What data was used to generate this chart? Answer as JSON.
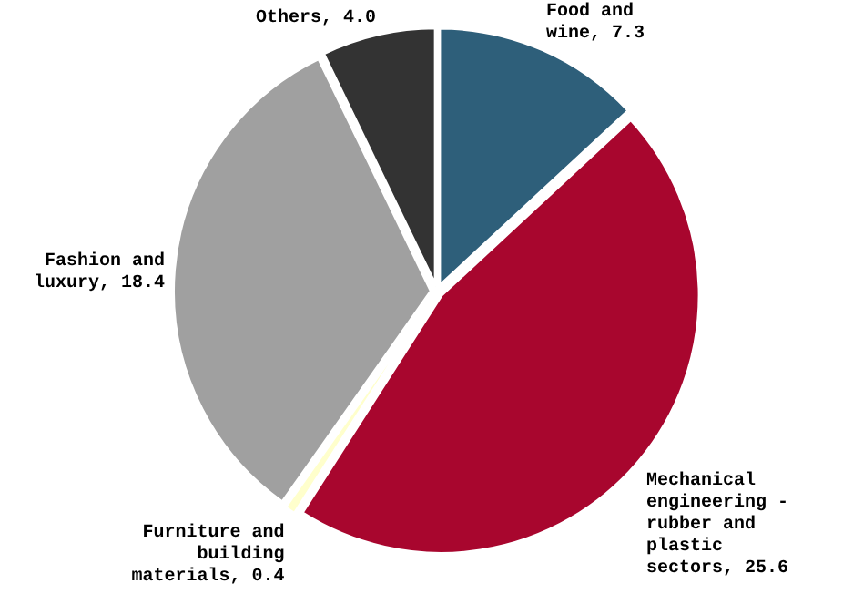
{
  "chart_data": {
    "type": "pie",
    "categories": [
      "Food and wine",
      "Mechanical engineering - rubber and plastic sectors",
      "Furniture and building materials",
      "Fashion and luxury",
      "Others"
    ],
    "values": [
      7.3,
      25.6,
      0.4,
      18.4,
      4.0
    ],
    "colors": [
      "#2e5f7a",
      "#a8062e",
      "#ffffcc",
      "#a0a0a0",
      "#333333"
    ],
    "value_labels": [
      "7.3",
      "25.6",
      "0.4",
      "18.4",
      "4.0"
    ]
  }
}
